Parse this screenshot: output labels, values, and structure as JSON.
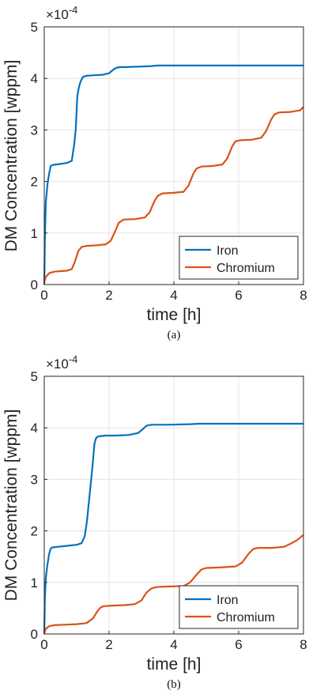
{
  "chart_data": [
    {
      "type": "line",
      "xlabel": "time [h]",
      "ylabel": "DM Concentration [wppm]",
      "multiplier": "×10",
      "multiplier_exp": "-4",
      "xlim": [
        0,
        8
      ],
      "ylim": [
        0,
        5
      ],
      "xticks": [
        0,
        2,
        4,
        6,
        8
      ],
      "yticks": [
        0,
        1,
        2,
        3,
        4,
        5
      ],
      "grid": true,
      "legend": "bottom-right",
      "caption": "(a)",
      "series": [
        {
          "name": "Iron",
          "color": "#0072bd",
          "x": [
            0,
            0.02,
            0.05,
            0.1,
            0.15,
            0.2,
            0.25,
            0.35,
            0.5,
            0.7,
            0.85,
            0.92,
            0.97,
            1.02,
            1.06,
            1.1,
            1.15,
            1.2,
            1.3,
            1.5,
            1.8,
            2.0,
            2.15,
            2.25,
            2.35,
            2.5,
            3.0,
            3.3,
            3.5,
            3.8,
            4.5,
            5.5,
            6.5,
            8.0
          ],
          "y": [
            0,
            0.9,
            1.6,
            1.95,
            2.15,
            2.3,
            2.32,
            2.33,
            2.34,
            2.36,
            2.4,
            2.7,
            3.0,
            3.65,
            3.8,
            3.9,
            3.98,
            4.03,
            4.05,
            4.06,
            4.07,
            4.1,
            4.18,
            4.21,
            4.22,
            4.22,
            4.23,
            4.24,
            4.25,
            4.25,
            4.25,
            4.25,
            4.25,
            4.25
          ]
        },
        {
          "name": "Chromium",
          "color": "#d95319",
          "x": [
            0,
            0.05,
            0.15,
            0.3,
            0.5,
            0.7,
            0.85,
            0.95,
            1.05,
            1.15,
            1.3,
            1.6,
            1.9,
            2.05,
            2.2,
            2.3,
            2.45,
            2.8,
            3.1,
            3.25,
            3.4,
            3.5,
            3.65,
            4.0,
            4.3,
            4.45,
            4.6,
            4.7,
            4.85,
            5.2,
            5.5,
            5.65,
            5.8,
            5.9,
            6.05,
            6.4,
            6.7,
            6.85,
            7.0,
            7.1,
            7.25,
            7.6,
            7.9,
            8.0
          ],
          "y": [
            0.05,
            0.15,
            0.22,
            0.25,
            0.26,
            0.27,
            0.3,
            0.45,
            0.65,
            0.73,
            0.75,
            0.76,
            0.78,
            0.85,
            1.05,
            1.2,
            1.26,
            1.27,
            1.3,
            1.4,
            1.62,
            1.72,
            1.77,
            1.78,
            1.8,
            1.92,
            2.15,
            2.25,
            2.29,
            2.3,
            2.33,
            2.45,
            2.68,
            2.78,
            2.8,
            2.81,
            2.85,
            2.98,
            3.2,
            3.3,
            3.34,
            3.35,
            3.38,
            3.45
          ]
        }
      ]
    },
    {
      "type": "line",
      "xlabel": "time [h]",
      "ylabel": "DM Concentration [wppm]",
      "multiplier": "×10",
      "multiplier_exp": "-4",
      "xlim": [
        0,
        8
      ],
      "ylim": [
        0,
        5
      ],
      "xticks": [
        0,
        2,
        4,
        6,
        8
      ],
      "yticks": [
        0,
        1,
        2,
        3,
        4,
        5
      ],
      "grid": true,
      "legend": "bottom-right",
      "caption": "(b)",
      "series": [
        {
          "name": "Iron",
          "color": "#0072bd",
          "x": [
            0,
            0.02,
            0.05,
            0.1,
            0.15,
            0.2,
            0.25,
            0.4,
            0.7,
            1.0,
            1.15,
            1.25,
            1.32,
            1.4,
            1.48,
            1.55,
            1.6,
            1.65,
            1.75,
            1.9,
            2.2,
            2.6,
            2.9,
            3.05,
            3.15,
            3.3,
            3.8,
            4.5,
            4.8,
            5.2,
            6.0,
            7.0,
            8.0
          ],
          "y": [
            0,
            0.7,
            1.1,
            1.35,
            1.55,
            1.66,
            1.68,
            1.69,
            1.71,
            1.73,
            1.76,
            1.9,
            2.2,
            2.7,
            3.2,
            3.7,
            3.8,
            3.83,
            3.84,
            3.85,
            3.85,
            3.86,
            3.9,
            3.98,
            4.04,
            4.06,
            4.06,
            4.07,
            4.08,
            4.08,
            4.08,
            4.08,
            4.08
          ]
        },
        {
          "name": "Chromium",
          "color": "#d95319",
          "x": [
            0,
            0.05,
            0.15,
            0.3,
            0.6,
            1.0,
            1.3,
            1.5,
            1.65,
            1.75,
            1.85,
            2.1,
            2.5,
            2.8,
            3.0,
            3.15,
            3.3,
            3.45,
            3.8,
            4.3,
            4.5,
            4.7,
            4.85,
            5.0,
            5.4,
            5.9,
            6.1,
            6.3,
            6.45,
            6.6,
            7.0,
            7.4,
            7.6,
            7.8,
            8.0
          ],
          "y": [
            0.02,
            0.1,
            0.15,
            0.17,
            0.18,
            0.19,
            0.21,
            0.3,
            0.45,
            0.52,
            0.54,
            0.55,
            0.56,
            0.58,
            0.65,
            0.8,
            0.88,
            0.91,
            0.92,
            0.93,
            1.0,
            1.15,
            1.25,
            1.28,
            1.29,
            1.31,
            1.38,
            1.55,
            1.65,
            1.67,
            1.67,
            1.69,
            1.75,
            1.82,
            1.92
          ]
        }
      ]
    }
  ]
}
